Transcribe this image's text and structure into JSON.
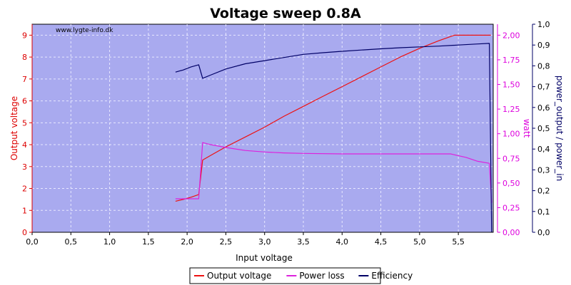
{
  "chart_data": {
    "type": "line",
    "title": "Voltage sweep 0.8A",
    "watermark": "www.lygte-info.dk",
    "plot_background": "#a9aaef",
    "grid": true,
    "legend_position": "bottom",
    "xlabel": "Input voltage",
    "xlim": [
      0,
      5.95
    ],
    "x_ticks": [
      "0,0",
      "0,5",
      "1,0",
      "1,5",
      "2,0",
      "2,5",
      "3,0",
      "3,5",
      "4,0",
      "4,5",
      "5,0",
      "5,5"
    ],
    "axes": {
      "left": {
        "label": "Output voltage",
        "color": "#dd0000",
        "lim": [
          0,
          9.5
        ],
        "ticks": [
          "0",
          "1",
          "2",
          "3",
          "4",
          "5",
          "6",
          "7",
          "8",
          "9"
        ]
      },
      "right1": {
        "label": "watt",
        "color": "#dd00dd",
        "lim": [
          0,
          2.111
        ],
        "ticks": [
          "0,00",
          "0,25",
          "0,50",
          "0,75",
          "1,00",
          "1,25",
          "1,50",
          "1,75",
          "2,00"
        ]
      },
      "right2": {
        "label": "power_output / power_in",
        "color": "#000066",
        "lim": [
          0,
          1.0
        ],
        "ticks": [
          "0,0",
          "0,1",
          "0,2",
          "0,3",
          "0,4",
          "0,5",
          "0,6",
          "0,7",
          "0,8",
          "0,9",
          "1,0"
        ]
      }
    },
    "series": [
      {
        "name": "Output voltage",
        "axis": "left",
        "color": "#ee1111",
        "points": [
          [
            1.85,
            1.42
          ],
          [
            1.95,
            1.5
          ],
          [
            2.05,
            1.6
          ],
          [
            2.15,
            1.72
          ],
          [
            2.2,
            3.3
          ],
          [
            2.3,
            3.5
          ],
          [
            2.5,
            3.9
          ],
          [
            2.75,
            4.35
          ],
          [
            3.0,
            4.8
          ],
          [
            3.25,
            5.3
          ],
          [
            3.5,
            5.75
          ],
          [
            3.75,
            6.2
          ],
          [
            4.0,
            6.65
          ],
          [
            4.25,
            7.1
          ],
          [
            4.5,
            7.55
          ],
          [
            4.75,
            8.0
          ],
          [
            5.0,
            8.4
          ],
          [
            5.25,
            8.75
          ],
          [
            5.45,
            9.0
          ],
          [
            5.92,
            9.0
          ]
        ]
      },
      {
        "name": "Power loss",
        "axis": "right1",
        "color": "#dd22dd",
        "points": [
          [
            1.85,
            0.34
          ],
          [
            2.0,
            0.34
          ],
          [
            2.15,
            0.34
          ],
          [
            2.2,
            0.91
          ],
          [
            2.3,
            0.89
          ],
          [
            2.5,
            0.86
          ],
          [
            2.75,
            0.83
          ],
          [
            3.0,
            0.815
          ],
          [
            3.25,
            0.805
          ],
          [
            3.5,
            0.8
          ],
          [
            4.0,
            0.795
          ],
          [
            4.5,
            0.795
          ],
          [
            5.0,
            0.795
          ],
          [
            5.4,
            0.795
          ],
          [
            5.6,
            0.76
          ],
          [
            5.75,
            0.72
          ],
          [
            5.9,
            0.7
          ],
          [
            5.93,
            0.3
          ]
        ]
      },
      {
        "name": "Efficiency",
        "axis": "right2",
        "color": "#000066",
        "points": [
          [
            1.85,
            0.77
          ],
          [
            1.95,
            0.78
          ],
          [
            2.05,
            0.795
          ],
          [
            2.15,
            0.805
          ],
          [
            2.2,
            0.74
          ],
          [
            2.3,
            0.755
          ],
          [
            2.5,
            0.785
          ],
          [
            2.75,
            0.81
          ],
          [
            3.0,
            0.825
          ],
          [
            3.25,
            0.84
          ],
          [
            3.5,
            0.855
          ],
          [
            3.75,
            0.863
          ],
          [
            4.0,
            0.87
          ],
          [
            4.25,
            0.876
          ],
          [
            4.5,
            0.882
          ],
          [
            4.75,
            0.887
          ],
          [
            5.0,
            0.891
          ],
          [
            5.25,
            0.895
          ],
          [
            5.5,
            0.9
          ],
          [
            5.75,
            0.905
          ],
          [
            5.9,
            0.908
          ],
          [
            5.93,
            0.0
          ]
        ]
      }
    ]
  }
}
